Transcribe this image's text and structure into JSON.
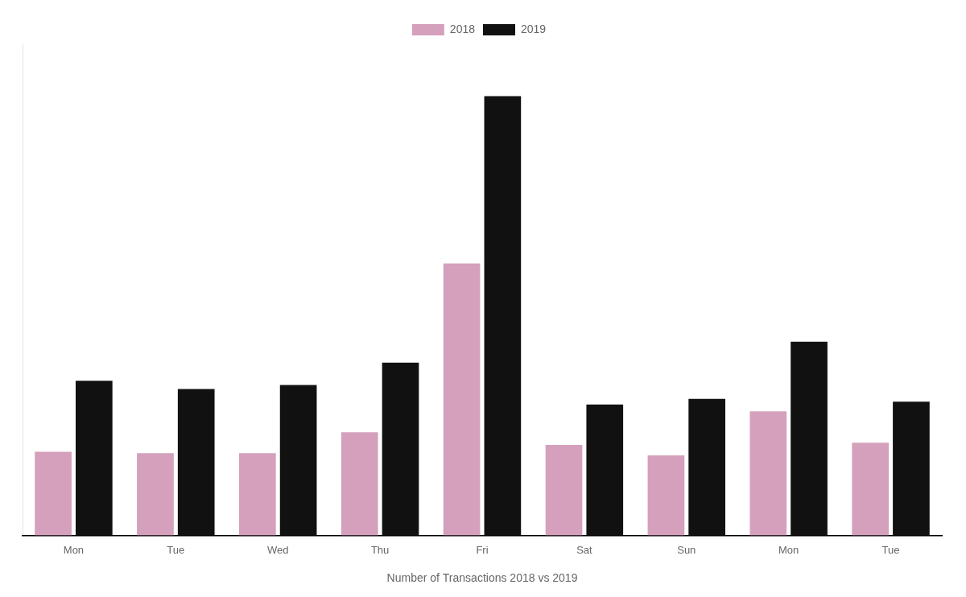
{
  "chart_data": {
    "type": "bar",
    "xlabel": "Number of Transactions 2018 vs 2019",
    "categories": [
      "Mon",
      "Tue",
      "Wed",
      "Thu",
      "Fri",
      "Sat",
      "Sun",
      "Mon",
      "Tue"
    ],
    "series": [
      {
        "name": "2018",
        "color": "#d4a0bb",
        "values": [
          120,
          118,
          118,
          148,
          390,
          130,
          115,
          178,
          133
        ]
      },
      {
        "name": "2019",
        "color": "#111111",
        "values": [
          222,
          210,
          216,
          248,
          630,
          188,
          196,
          278,
          192
        ]
      }
    ],
    "ylim": [
      0,
      705.6
    ],
    "tick_labels": "x",
    "grid": false,
    "legend": "top"
  }
}
